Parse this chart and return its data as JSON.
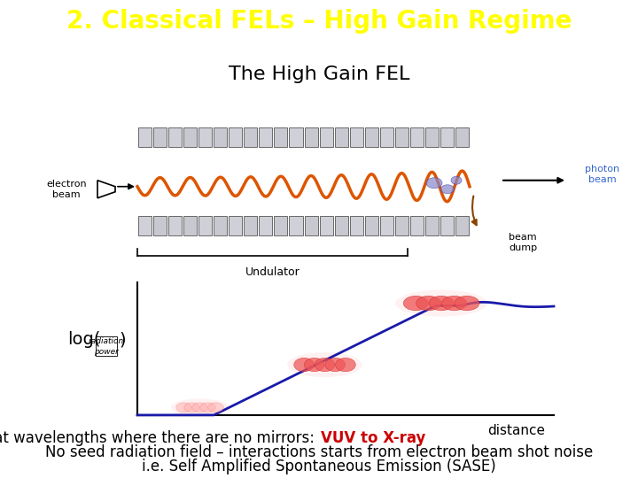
{
  "title": "2. Classical FELs – High Gain Regime",
  "title_bg": "#3d3d9e",
  "title_color": "#ffff00",
  "title_fontsize": 20,
  "subtitle": "The High Gain FEL",
  "subtitle_fontsize": 16,
  "subtitle_color": "#000000",
  "bg_color": "#ffffff",
  "line1": "Usually used at wavelengths where there are no mirrors: ",
  "line1_bold": "VUV to X-ray",
  "line1_bold_color": "#cc0000",
  "line2": "No seed radiation field – interactions starts from electron beam shot noise",
  "line3": "i.e. Self Amplified Spontaneous Emission (SASE)",
  "text_fontsize": 12,
  "distance_label": "distance",
  "curve_color": "#1a1aaa",
  "photon_beam_color": "#3366cc",
  "undulator_label": "Undulator",
  "beam_dump_label": "beam\ndump",
  "photon_beam_label": "photon\nbeam",
  "electron_beam_label": "electron\nbeam"
}
